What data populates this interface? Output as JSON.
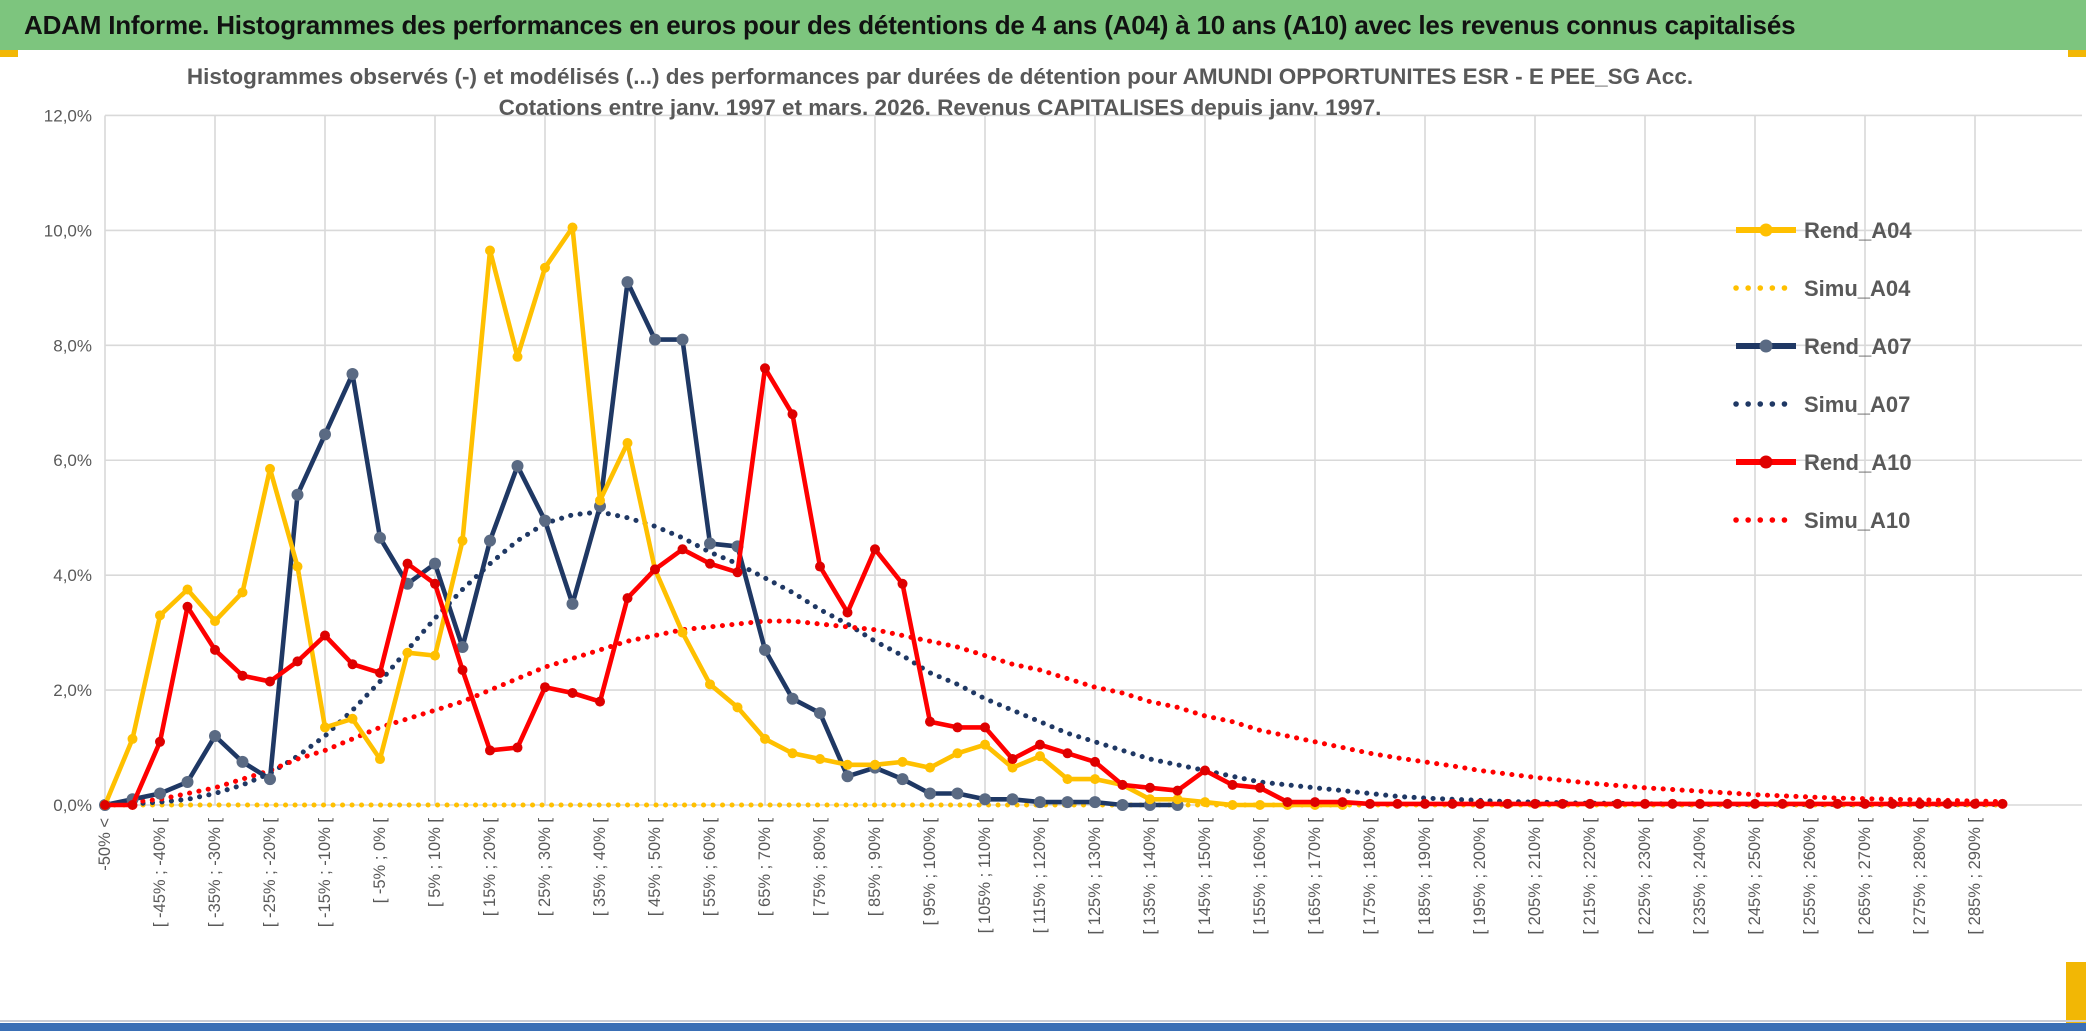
{
  "header": {
    "title": "ADAM Informe. Histogrammes des performances en euros pour des détentions de 4 ans (A04) à 10 ans (A10) avec les revenus connus capitalisés"
  },
  "chart_data": {
    "type": "line",
    "title_line1": "Histogrammes observés (-) et modélisés (...) des performances par durées de détention pour AMUNDI OPPORTUNITES ESR - E PEE_SG Acc.",
    "title_line2": "Cotations entre janv. 1997 et mars. 2026. Revenus CAPITALISES depuis janv. 1997.",
    "ylabel": "",
    "xlabel": "",
    "ylim": [
      0,
      12
    ],
    "grid": true,
    "legend_position": "right-overlay",
    "y_tick_labels": [
      "0,0%",
      "2,0%",
      "4,0%",
      "6,0%",
      "8,0%",
      "10,0%",
      "12,0%"
    ],
    "n_bins": 70,
    "x_tick_every": 2,
    "x_tick_labels": [
      "-50% <",
      "[ -45% ; -40% [",
      "[ -35% ; -30% [",
      "[ -25% ; -20% [",
      "[ -15% ; -10% [",
      "[ -5% ; 0% [",
      "[ 5% ; 10% [",
      "[ 15% ; 20% [",
      "[ 25% ; 30% [",
      "[ 35% ; 40% [",
      "[ 45% ; 50% [",
      "[ 55% ; 60% [",
      "[ 65% ; 70% [",
      "[ 75% ; 80% [",
      "[ 85% ; 90% [",
      "[ 95% ; 100% [",
      "[ 105% ; 110% [",
      "[ 115% ; 120% [",
      "[ 125% ; 130% [",
      "[ 135% ; 140% [",
      "[ 145% ; 150% [",
      "[ 155% ; 160% [",
      "[ 165% ; 170% [",
      "[ 175% ; 180% [",
      "[ 185% ; 190% [",
      "[ 195% ; 200% [",
      "[ 205% ; 210% [",
      "[ 215% ; 220% [",
      "[ 225% ; 230% [",
      "[ 235% ; 240% [",
      "[ 245% ; 250% [",
      "[ 255% ; 260% [",
      "[ 265% ; 270% [",
      "[ 275% ; 280% [",
      "[ 285% ; 290% ["
    ],
    "series": [
      {
        "name": "Rend_A04",
        "style": "solid",
        "color": "#FFC000",
        "marker_color": "#FFC000",
        "values": [
          0,
          1.15,
          3.3,
          3.75,
          3.2,
          3.7,
          5.85,
          4.15,
          1.35,
          1.5,
          0.8,
          2.65,
          2.6,
          4.6,
          9.65,
          7.8,
          9.35,
          10.05,
          5.3,
          6.3,
          4.1,
          3.0,
          2.1,
          1.7,
          1.15,
          0.9,
          0.8,
          0.7,
          0.7,
          0.75,
          0.65,
          0.9,
          1.05,
          0.65,
          0.85,
          0.45,
          0.45,
          0.35,
          0.1,
          0.1,
          0.05,
          0,
          0,
          0,
          0,
          0,
          null,
          null,
          null,
          null,
          null,
          null,
          null,
          null,
          null,
          null,
          null,
          null,
          null,
          null,
          null,
          null,
          null,
          null,
          null,
          null,
          null,
          null,
          null,
          null
        ]
      },
      {
        "name": "Simu_A04",
        "style": "dotted",
        "color": "#FFC000",
        "values": [
          0,
          0,
          0,
          0,
          0,
          0,
          0,
          0,
          0,
          0,
          0,
          0,
          0,
          0,
          0,
          0,
          0,
          0,
          0,
          0,
          0,
          0,
          0,
          0,
          0,
          0,
          0,
          0,
          0,
          0,
          0,
          0,
          0,
          0,
          0,
          0,
          0,
          0,
          0,
          0,
          0,
          0,
          0,
          0,
          0,
          0,
          0,
          0,
          0,
          0,
          0,
          0,
          0,
          0,
          0,
          0,
          0,
          0,
          0,
          0,
          0,
          0,
          0,
          0,
          0,
          0,
          0,
          0,
          0,
          0
        ]
      },
      {
        "name": "Rend_A07",
        "style": "solid",
        "color": "#1F3864",
        "marker_color": "#5A6A83",
        "values": [
          0,
          0.1,
          0.2,
          0.4,
          1.2,
          0.75,
          0.45,
          5.4,
          6.45,
          7.5,
          4.65,
          3.85,
          4.2,
          2.75,
          4.6,
          5.9,
          4.95,
          3.5,
          5.2,
          9.1,
          8.1,
          8.1,
          4.55,
          4.5,
          2.7,
          1.85,
          1.6,
          0.5,
          0.65,
          0.45,
          0.2,
          0.2,
          0.1,
          0.1,
          0.05,
          0.05,
          0.05,
          0,
          0,
          0,
          null,
          null,
          null,
          null,
          null,
          null,
          null,
          null,
          null,
          null,
          null,
          null,
          null,
          null,
          null,
          null,
          null,
          null,
          null,
          null,
          null,
          null,
          null,
          null,
          null,
          null,
          null,
          null,
          null,
          null
        ]
      },
      {
        "name": "Simu_A07",
        "style": "dotted",
        "color": "#1F3864",
        "values": [
          0,
          0.02,
          0.05,
          0.1,
          0.2,
          0.35,
          0.55,
          0.85,
          1.2,
          1.65,
          2.15,
          2.7,
          3.25,
          3.75,
          4.2,
          4.6,
          4.9,
          5.05,
          5.1,
          5.0,
          4.85,
          4.65,
          4.4,
          4.2,
          3.95,
          3.7,
          3.4,
          3.15,
          2.85,
          2.6,
          2.3,
          2.1,
          1.85,
          1.65,
          1.45,
          1.25,
          1.1,
          0.95,
          0.8,
          0.7,
          0.6,
          0.5,
          0.4,
          0.35,
          0.3,
          0.25,
          0.2,
          0.15,
          0.12,
          0.1,
          0.08,
          0.06,
          0.05,
          0.04,
          0.03,
          0.03,
          0.02,
          0.02,
          0.01,
          0.01,
          0.01,
          0.01,
          0.01,
          0.01,
          0.01,
          0.01,
          0.01,
          0.01,
          0.01,
          0.01
        ]
      },
      {
        "name": "Rend_A10",
        "style": "solid",
        "color": "#FF0000",
        "marker_color": "#DE0000",
        "values": [
          0,
          0,
          1.1,
          3.45,
          2.7,
          2.25,
          2.15,
          2.5,
          2.95,
          2.45,
          2.3,
          4.2,
          3.85,
          2.35,
          0.95,
          1.0,
          2.05,
          1.95,
          1.8,
          3.6,
          4.1,
          4.45,
          4.2,
          4.05,
          7.6,
          6.8,
          4.15,
          3.35,
          4.45,
          3.85,
          1.45,
          1.35,
          1.35,
          0.8,
          1.05,
          0.9,
          0.75,
          0.35,
          0.3,
          0.25,
          0.6,
          0.35,
          0.3,
          0.05,
          0.05,
          0.05,
          0.02,
          0.02,
          0.02,
          0.02,
          0.02,
          0.02,
          0.02,
          0.02,
          0.02,
          0.02,
          0.02,
          0.02,
          0.02,
          0.02,
          0.02,
          0.02,
          0.02,
          0.02,
          0.02,
          0.02,
          0.02,
          0.02,
          0.02,
          0.02
        ]
      },
      {
        "name": "Simu_A10",
        "style": "dotted",
        "color": "#FF0000",
        "values": [
          0,
          0.05,
          0.1,
          0.2,
          0.3,
          0.45,
          0.6,
          0.8,
          0.95,
          1.15,
          1.35,
          1.5,
          1.65,
          1.8,
          2.0,
          2.2,
          2.4,
          2.55,
          2.7,
          2.85,
          2.95,
          3.05,
          3.1,
          3.15,
          3.2,
          3.2,
          3.15,
          3.1,
          3.05,
          2.95,
          2.85,
          2.75,
          2.6,
          2.45,
          2.35,
          2.2,
          2.05,
          1.95,
          1.8,
          1.7,
          1.55,
          1.45,
          1.3,
          1.2,
          1.1,
          1.0,
          0.9,
          0.82,
          0.75,
          0.68,
          0.6,
          0.54,
          0.48,
          0.43,
          0.38,
          0.34,
          0.3,
          0.27,
          0.24,
          0.21,
          0.18,
          0.16,
          0.14,
          0.12,
          0.11,
          0.1,
          0.09,
          0.08,
          0.07,
          0.06
        ]
      }
    ]
  },
  "colors": {
    "header_green": "#7dc57e",
    "accent_yellow": "#f2b705",
    "bottom_blue": "#3a6fb5",
    "grid": "#d9d9d9",
    "text_gray": "#595959"
  }
}
